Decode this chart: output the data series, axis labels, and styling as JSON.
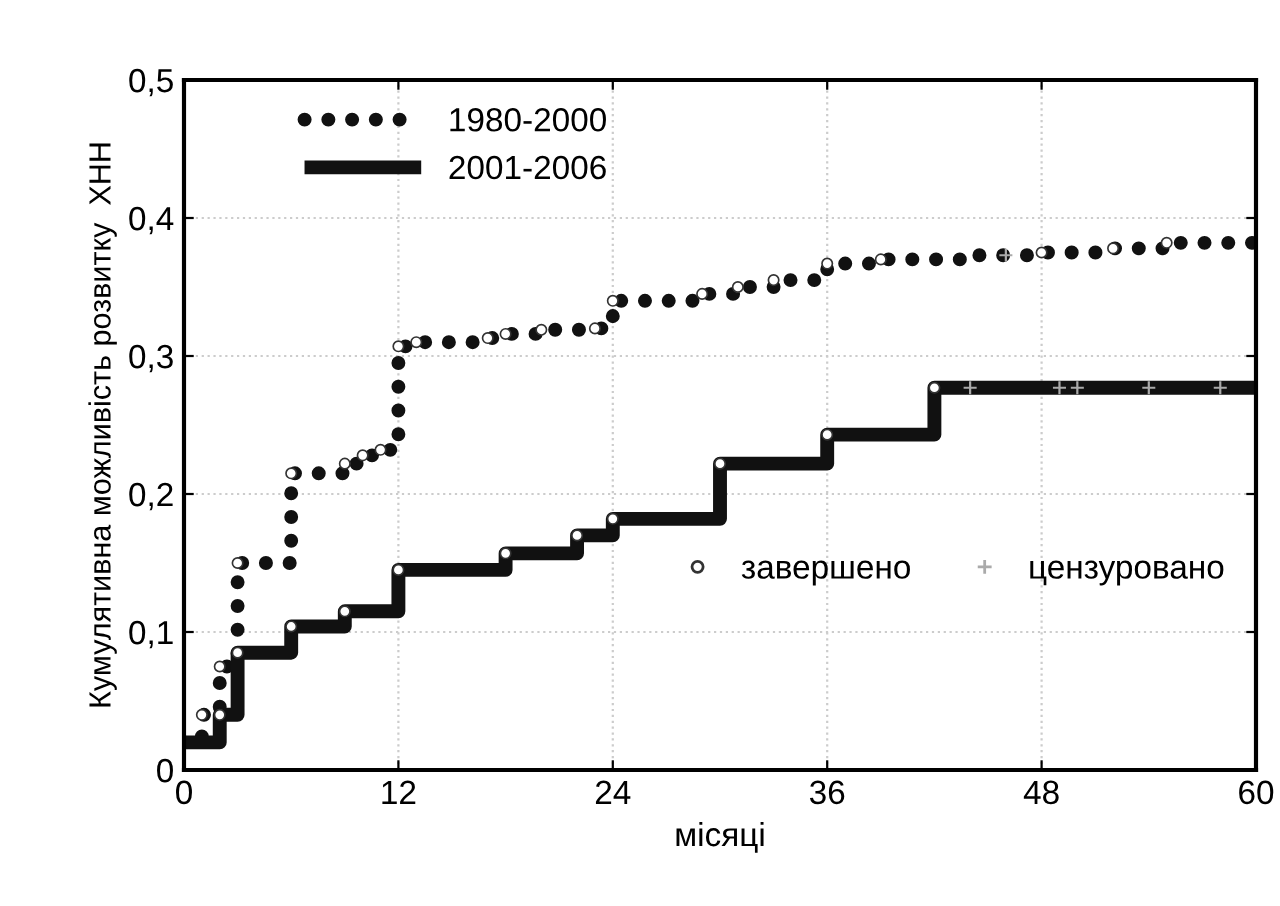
{
  "chart_data": {
    "type": "step",
    "xlabel": "місяці",
    "ylabel": "Кумулятивна можливість розвитку  ХНН",
    "xlim": [
      0,
      60
    ],
    "ylim": [
      0,
      0.5
    ],
    "xticks": [
      0,
      12,
      24,
      36,
      48,
      60
    ],
    "yticks": [
      {
        "value": 0,
        "label": "0"
      },
      {
        "value": 0.1,
        "label": "0,1"
      },
      {
        "value": 0.2,
        "label": "0,2"
      },
      {
        "value": 0.3,
        "label": "0,3"
      },
      {
        "value": 0.4,
        "label": "0,4"
      },
      {
        "value": 0.5,
        "label": "0,5"
      }
    ],
    "grid": true,
    "legend": "top left",
    "series": [
      {
        "name": "1980-2000",
        "color": "#111111",
        "line_style": "dotted",
        "x": [
          0,
          1,
          2,
          3,
          6,
          9,
          10,
          11,
          12,
          13,
          17,
          18,
          20,
          23,
          24,
          29,
          31,
          33,
          36,
          39,
          44,
          48,
          52,
          55,
          60
        ],
        "values": [
          0.02,
          0.04,
          0.075,
          0.15,
          0.215,
          0.222,
          0.228,
          0.232,
          0.307,
          0.31,
          0.313,
          0.316,
          0.319,
          0.32,
          0.34,
          0.345,
          0.35,
          0.355,
          0.367,
          0.37,
          0.373,
          0.375,
          0.378,
          0.382,
          0.395
        ]
      },
      {
        "name": "2001-2006",
        "color": "#111111",
        "line_style": "solid",
        "x": [
          0,
          2,
          3,
          6,
          9,
          12,
          18,
          22,
          24,
          30,
          36,
          42,
          60
        ],
        "values": [
          0.02,
          0.04,
          0.085,
          0.104,
          0.115,
          0.145,
          0.157,
          0.17,
          0.182,
          0.222,
          0.243,
          0.277,
          0.277
        ]
      },
      {
        "name": "завершено",
        "type": "scatter",
        "marker": "circle",
        "color": "#ffffff",
        "x": [
          1,
          2,
          3,
          6,
          9,
          10,
          11,
          12,
          13,
          17,
          18,
          20,
          23,
          24,
          29,
          31,
          33,
          36,
          39,
          48,
          52,
          55,
          2,
          3,
          6,
          9,
          12,
          18,
          22,
          24,
          30,
          36,
          42
        ],
        "values": [
          0.04,
          0.075,
          0.15,
          0.215,
          0.222,
          0.228,
          0.232,
          0.307,
          0.31,
          0.313,
          0.316,
          0.319,
          0.32,
          0.34,
          0.345,
          0.35,
          0.355,
          0.367,
          0.37,
          0.375,
          0.378,
          0.382,
          0.04,
          0.085,
          0.104,
          0.115,
          0.145,
          0.157,
          0.17,
          0.182,
          0.222,
          0.243,
          0.277
        ]
      },
      {
        "name": "цензуровано",
        "type": "scatter",
        "marker": "cross",
        "color": "#aaaaaa",
        "x": [
          46,
          44,
          49,
          50,
          54,
          58
        ],
        "values": [
          0.373,
          0.277,
          0.277,
          0.277,
          0.277,
          0.277
        ]
      }
    ]
  }
}
